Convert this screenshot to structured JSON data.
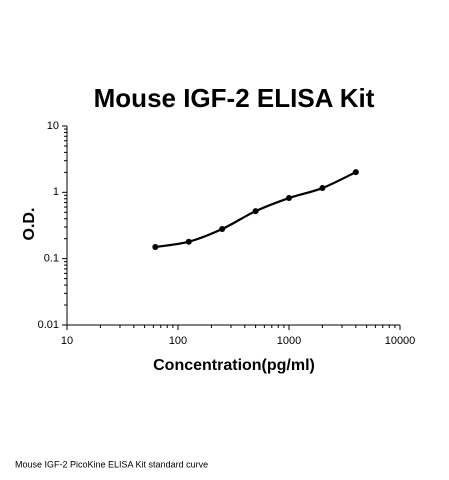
{
  "chart_data": {
    "type": "scatter",
    "title": "Mouse IGF-2 ELISA Kit",
    "x_label": "Concentration(pg/ml)",
    "y_label": "O.D.",
    "x": [
      62.5,
      125,
      250,
      500,
      1000,
      2000,
      4000
    ],
    "values": [
      0.15,
      0.18,
      0.28,
      0.52,
      0.82,
      1.16,
      2.02
    ],
    "color": "#000000",
    "x_log": true,
    "y_log": true,
    "xlim": [
      10,
      10000
    ],
    "ylim": [
      0.01,
      10
    ],
    "xticks": [
      10,
      100,
      1000,
      10000
    ],
    "yticks": [
      0.01,
      0.1,
      1,
      10
    ],
    "caption": "Mouse IGF-2 PicoKine ELISA Kit standard curve"
  }
}
